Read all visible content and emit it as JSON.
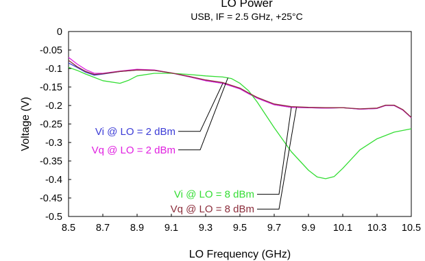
{
  "chart_data": {
    "type": "line",
    "title": "LO Power",
    "subtitle": "USB, IF = 2.5 GHz, +25°C",
    "xlabel": "LO Frequency (GHz)",
    "ylabel": "Voltage (V)",
    "xlim": [
      8.5,
      10.5
    ],
    "ylim": [
      -0.5,
      0
    ],
    "xticks": [
      "8.5",
      "8.7",
      "8.9",
      "9.1",
      "9.3",
      "9.5",
      "9.7",
      "9.9",
      "10.1",
      "10.3",
      "10.5"
    ],
    "yticks": [
      "0",
      "-0.05",
      "-0.1",
      "-0.15",
      "-0.2",
      "-0.25",
      "-0.3",
      "-0.35",
      "-0.4",
      "-0.45",
      "-0.5"
    ],
    "grid": false,
    "series": [
      {
        "name": "Vi @ LO = 2 dBm",
        "color": "#3b3bd6",
        "x": [
          8.5,
          8.55,
          8.6,
          8.65,
          8.7,
          8.8,
          8.9,
          9.0,
          9.1,
          9.2,
          9.3,
          9.4,
          9.5,
          9.55,
          9.6,
          9.7,
          9.8,
          9.9,
          10.0,
          10.1,
          10.2,
          10.3,
          10.35,
          10.4,
          10.45,
          10.5
        ],
        "y": [
          -0.085,
          -0.097,
          -0.11,
          -0.118,
          -0.115,
          -0.108,
          -0.104,
          -0.105,
          -0.112,
          -0.122,
          -0.133,
          -0.14,
          -0.155,
          -0.168,
          -0.18,
          -0.198,
          -0.205,
          -0.206,
          -0.207,
          -0.206,
          -0.21,
          -0.208,
          -0.2,
          -0.2,
          -0.212,
          -0.233
        ]
      },
      {
        "name": "Vq @ LO = 2 dBm",
        "color": "#e020e0",
        "x": [
          8.5,
          8.55,
          8.6,
          8.65,
          8.7,
          8.8,
          8.9,
          9.0,
          9.1,
          9.2,
          9.3,
          9.4,
          9.5,
          9.55,
          9.6,
          9.7,
          9.8,
          9.9,
          10.0,
          10.1,
          10.2,
          10.3,
          10.35,
          10.4,
          10.45,
          10.5
        ],
        "y": [
          -0.07,
          -0.088,
          -0.103,
          -0.113,
          -0.113,
          -0.107,
          -0.102,
          -0.104,
          -0.112,
          -0.122,
          -0.133,
          -0.14,
          -0.155,
          -0.168,
          -0.18,
          -0.198,
          -0.205,
          -0.206,
          -0.207,
          -0.206,
          -0.21,
          -0.208,
          -0.2,
          -0.2,
          -0.212,
          -0.233
        ]
      },
      {
        "name": "Vi @ LO = 8 dBm",
        "color": "#33dd33",
        "x": [
          8.5,
          8.55,
          8.6,
          8.7,
          8.8,
          8.85,
          8.9,
          9.0,
          9.1,
          9.2,
          9.3,
          9.4,
          9.45,
          9.5,
          9.55,
          9.6,
          9.7,
          9.8,
          9.9,
          9.95,
          10.0,
          10.05,
          10.1,
          10.2,
          10.3,
          10.4,
          10.5
        ],
        "y": [
          -0.097,
          -0.105,
          -0.115,
          -0.133,
          -0.14,
          -0.132,
          -0.12,
          -0.113,
          -0.113,
          -0.116,
          -0.12,
          -0.123,
          -0.127,
          -0.14,
          -0.16,
          -0.19,
          -0.26,
          -0.325,
          -0.375,
          -0.393,
          -0.398,
          -0.392,
          -0.37,
          -0.32,
          -0.29,
          -0.272,
          -0.263
        ]
      },
      {
        "name": "Vq @ LO = 8 dBm",
        "color": "#8b2c3a",
        "x": [
          8.5,
          8.55,
          8.6,
          8.65,
          8.7,
          8.8,
          8.9,
          9.0,
          9.1,
          9.2,
          9.3,
          9.4,
          9.5,
          9.55,
          9.6,
          9.7,
          9.8,
          9.9,
          10.0,
          10.1,
          10.2,
          10.3,
          10.35,
          10.4,
          10.45,
          10.5
        ],
        "y": [
          -0.078,
          -0.095,
          -0.108,
          -0.116,
          -0.114,
          -0.108,
          -0.104,
          -0.105,
          -0.112,
          -0.121,
          -0.131,
          -0.138,
          -0.153,
          -0.166,
          -0.178,
          -0.196,
          -0.203,
          -0.205,
          -0.206,
          -0.206,
          -0.209,
          -0.207,
          -0.199,
          -0.199,
          -0.211,
          -0.232
        ]
      }
    ],
    "annotations": [
      {
        "series_index": 0,
        "text": "Vi @ LO = 2 dBm",
        "color": "#3b3bd6",
        "anchor": {
          "x": 9.4,
          "y": -0.14
        },
        "label_at": {
          "x": 9.26,
          "y": -0.27
        }
      },
      {
        "series_index": 1,
        "text": "Vq @ LO = 2 dBm",
        "color": "#e020e0",
        "anchor": {
          "x": 9.43,
          "y": -0.125
        },
        "label_at": {
          "x": 9.26,
          "y": -0.32
        }
      },
      {
        "series_index": 2,
        "text": "Vi @ LO = 8 dBm",
        "color": "#33dd33",
        "anchor": {
          "x": 9.8,
          "y": -0.205
        },
        "label_at": {
          "x": 9.72,
          "y": -0.44
        }
      },
      {
        "series_index": 3,
        "text": "Vq @ LO = 8 dBm",
        "color": "#8b2c3a",
        "anchor": {
          "x": 9.83,
          "y": -0.205
        },
        "label_at": {
          "x": 9.72,
          "y": -0.48
        }
      }
    ]
  }
}
